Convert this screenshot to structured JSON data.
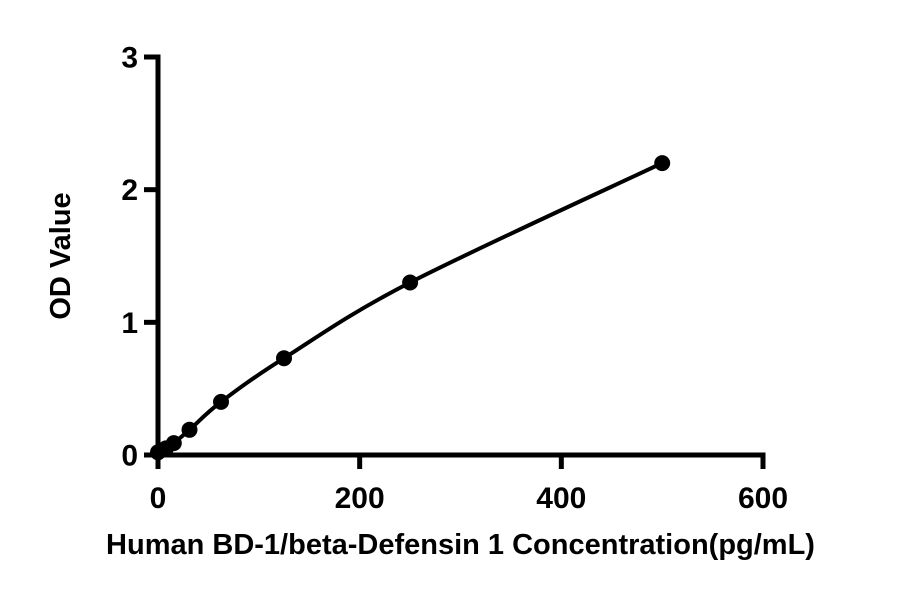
{
  "figure": {
    "background_color": "#ffffff",
    "foreground_color": "#000000"
  },
  "chart_data": {
    "type": "scatter",
    "subtype": "standard-curve-with-smooth-fit-line",
    "title": "",
    "xlabel": "Human BD-1/beta-Defensin 1 Concentration(pg/mL)",
    "ylabel": "OD Value",
    "x": [
      0,
      7.8125,
      15.625,
      31.25,
      62.5,
      125,
      250,
      500
    ],
    "y": [
      0.02,
      0.05,
      0.09,
      0.19,
      0.4,
      0.73,
      1.3,
      2.2
    ],
    "x_tick_labels": [
      "0",
      "200",
      "400",
      "600"
    ],
    "x_tick_values": [
      0,
      200,
      400,
      600
    ],
    "y_tick_labels": [
      "0",
      "1",
      "2",
      "3"
    ],
    "y_tick_values": [
      0,
      1,
      2,
      3
    ],
    "xlim": [
      0,
      600
    ],
    "ylim": [
      0,
      3
    ],
    "grid": false,
    "legend": null,
    "marker": "filled-circle",
    "marker_color": "#000000",
    "line_color": "#000000",
    "axis_color": "#000000"
  }
}
